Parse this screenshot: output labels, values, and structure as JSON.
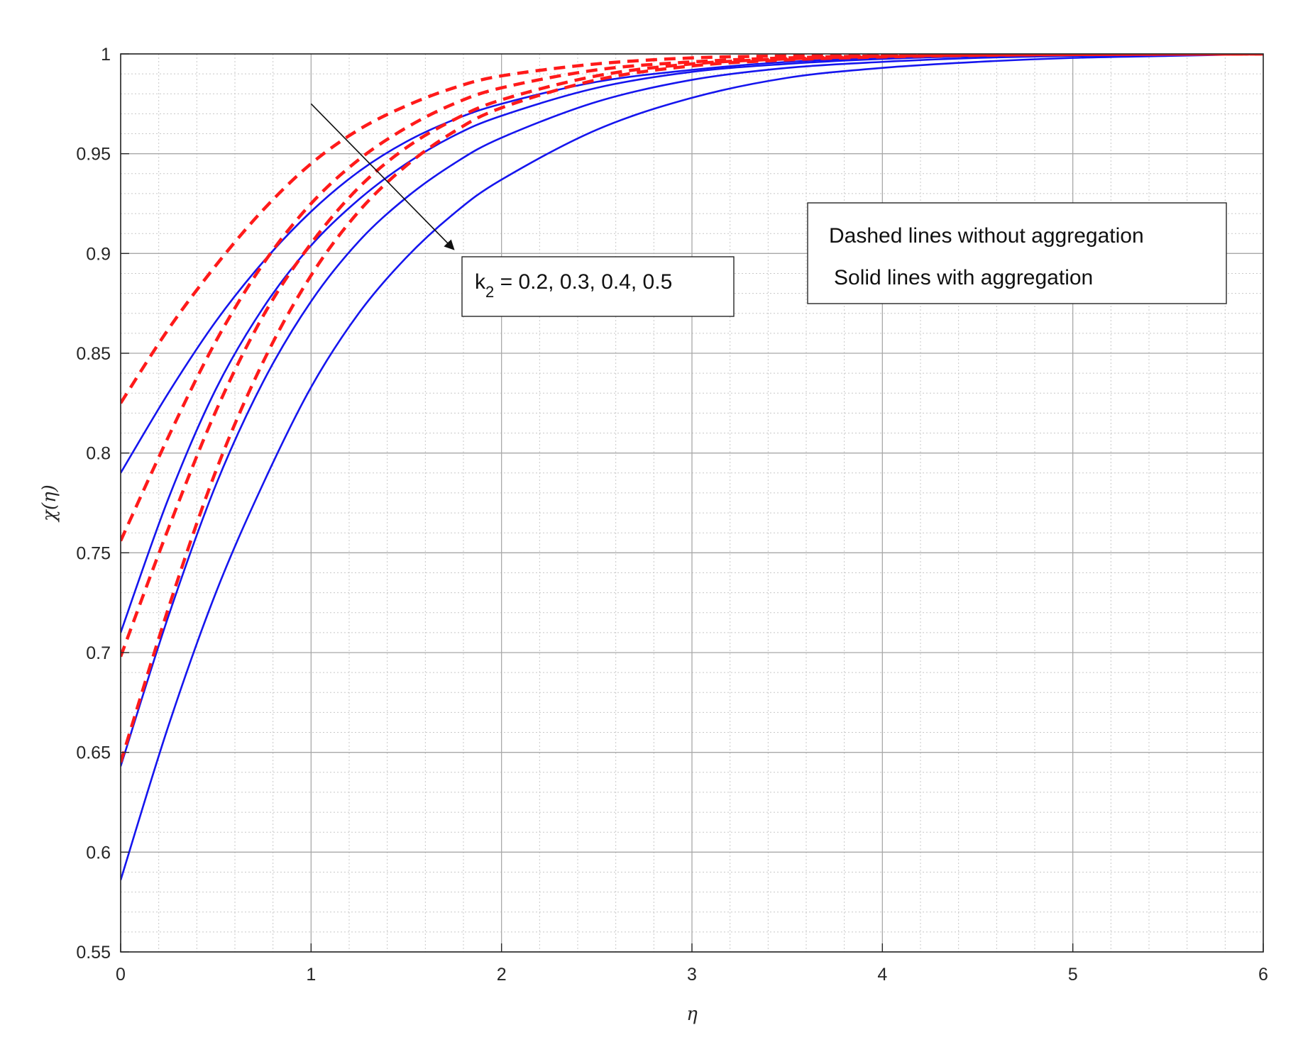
{
  "chart_data": {
    "type": "line",
    "title": "",
    "xlabel": "η",
    "ylabel": "χ(η)",
    "xlim": [
      0,
      6
    ],
    "ylim": [
      0.55,
      1
    ],
    "grid": true,
    "minor_grid": true,
    "x_ticks": [
      0,
      1,
      2,
      3,
      4,
      5,
      6
    ],
    "x_tick_labels": [
      "0",
      "1",
      "2",
      "3",
      "4",
      "5",
      "6"
    ],
    "y_ticks": [
      0.55,
      0.6,
      0.65,
      0.7,
      0.75,
      0.8,
      0.85,
      0.9,
      0.95,
      1
    ],
    "y_tick_labels": [
      "0.55",
      "0.6",
      "0.65",
      "0.7",
      "0.75",
      "0.8",
      "0.85",
      "0.9",
      "0.95",
      "1"
    ],
    "x": [
      0,
      0.25,
      0.5,
      0.75,
      1,
      1.25,
      1.5,
      1.75,
      2,
      2.5,
      3,
      3.5,
      4,
      4.5,
      5,
      5.5,
      6
    ],
    "series": [
      {
        "style": "dashed",
        "color": "#ff1a1a",
        "k2": 0.2,
        "values": [
          0.825,
          0.862,
          0.894,
          0.922,
          0.945,
          0.962,
          0.974,
          0.983,
          0.989,
          0.995,
          0.998,
          0.999,
          0.9995,
          0.9998,
          0.9999,
          1.0,
          1.0
        ]
      },
      {
        "style": "dashed",
        "color": "#ff1a1a",
        "k2": 0.3,
        "values": [
          0.756,
          0.808,
          0.856,
          0.895,
          0.925,
          0.947,
          0.963,
          0.975,
          0.983,
          0.992,
          0.996,
          0.998,
          0.999,
          0.9995,
          0.9998,
          0.9999,
          1.0
        ]
      },
      {
        "style": "dashed",
        "color": "#ff1a1a",
        "k2": 0.4,
        "values": [
          0.698,
          0.762,
          0.821,
          0.869,
          0.905,
          0.933,
          0.953,
          0.967,
          0.977,
          0.989,
          0.995,
          0.9975,
          0.9988,
          0.9994,
          0.9997,
          0.9999,
          1.0
        ]
      },
      {
        "style": "dashed",
        "color": "#ff1a1a",
        "k2": 0.5,
        "values": [
          0.645,
          0.722,
          0.791,
          0.846,
          0.889,
          0.921,
          0.944,
          0.961,
          0.973,
          0.987,
          0.994,
          0.997,
          0.9985,
          0.9993,
          0.9997,
          0.9999,
          1.0
        ]
      },
      {
        "style": "solid",
        "color": "#1515ee",
        "k2": 0.2,
        "values": [
          0.79,
          0.83,
          0.866,
          0.896,
          0.921,
          0.941,
          0.956,
          0.967,
          0.975,
          0.986,
          0.992,
          0.996,
          0.998,
          0.999,
          0.9995,
          0.9998,
          1.0
        ]
      },
      {
        "style": "solid",
        "color": "#1515ee",
        "k2": 0.3,
        "values": [
          0.71,
          0.777,
          0.832,
          0.873,
          0.904,
          0.927,
          0.945,
          0.959,
          0.969,
          0.983,
          0.991,
          0.995,
          0.9975,
          0.9988,
          0.9994,
          0.9997,
          1.0
        ]
      },
      {
        "style": "solid",
        "color": "#1515ee",
        "k2": 0.4,
        "values": [
          0.643,
          0.718,
          0.784,
          0.836,
          0.876,
          0.906,
          0.928,
          0.945,
          0.958,
          0.976,
          0.987,
          0.993,
          0.996,
          0.998,
          0.999,
          0.9996,
          1.0
        ]
      },
      {
        "style": "solid",
        "color": "#1515ee",
        "k2": 0.5,
        "values": [
          0.586,
          0.663,
          0.73,
          0.785,
          0.833,
          0.87,
          0.898,
          0.92,
          0.937,
          0.962,
          0.978,
          0.988,
          0.993,
          0.996,
          0.998,
          0.999,
          1.0
        ]
      }
    ],
    "legend_box": {
      "placement": "upper-right",
      "lines": [
        "Dashed lines without aggregation",
        "Solid lines with aggregation"
      ]
    },
    "annotation": {
      "label_main": "k",
      "label_sub": "2",
      "label_rest": " = 0.2, 0.3, 0.4, 0.5",
      "arrow_from": [
        1.0,
        0.975
      ],
      "arrow_to": [
        1.75,
        0.902
      ],
      "meaning": "arrow indicates increasing k2"
    }
  }
}
